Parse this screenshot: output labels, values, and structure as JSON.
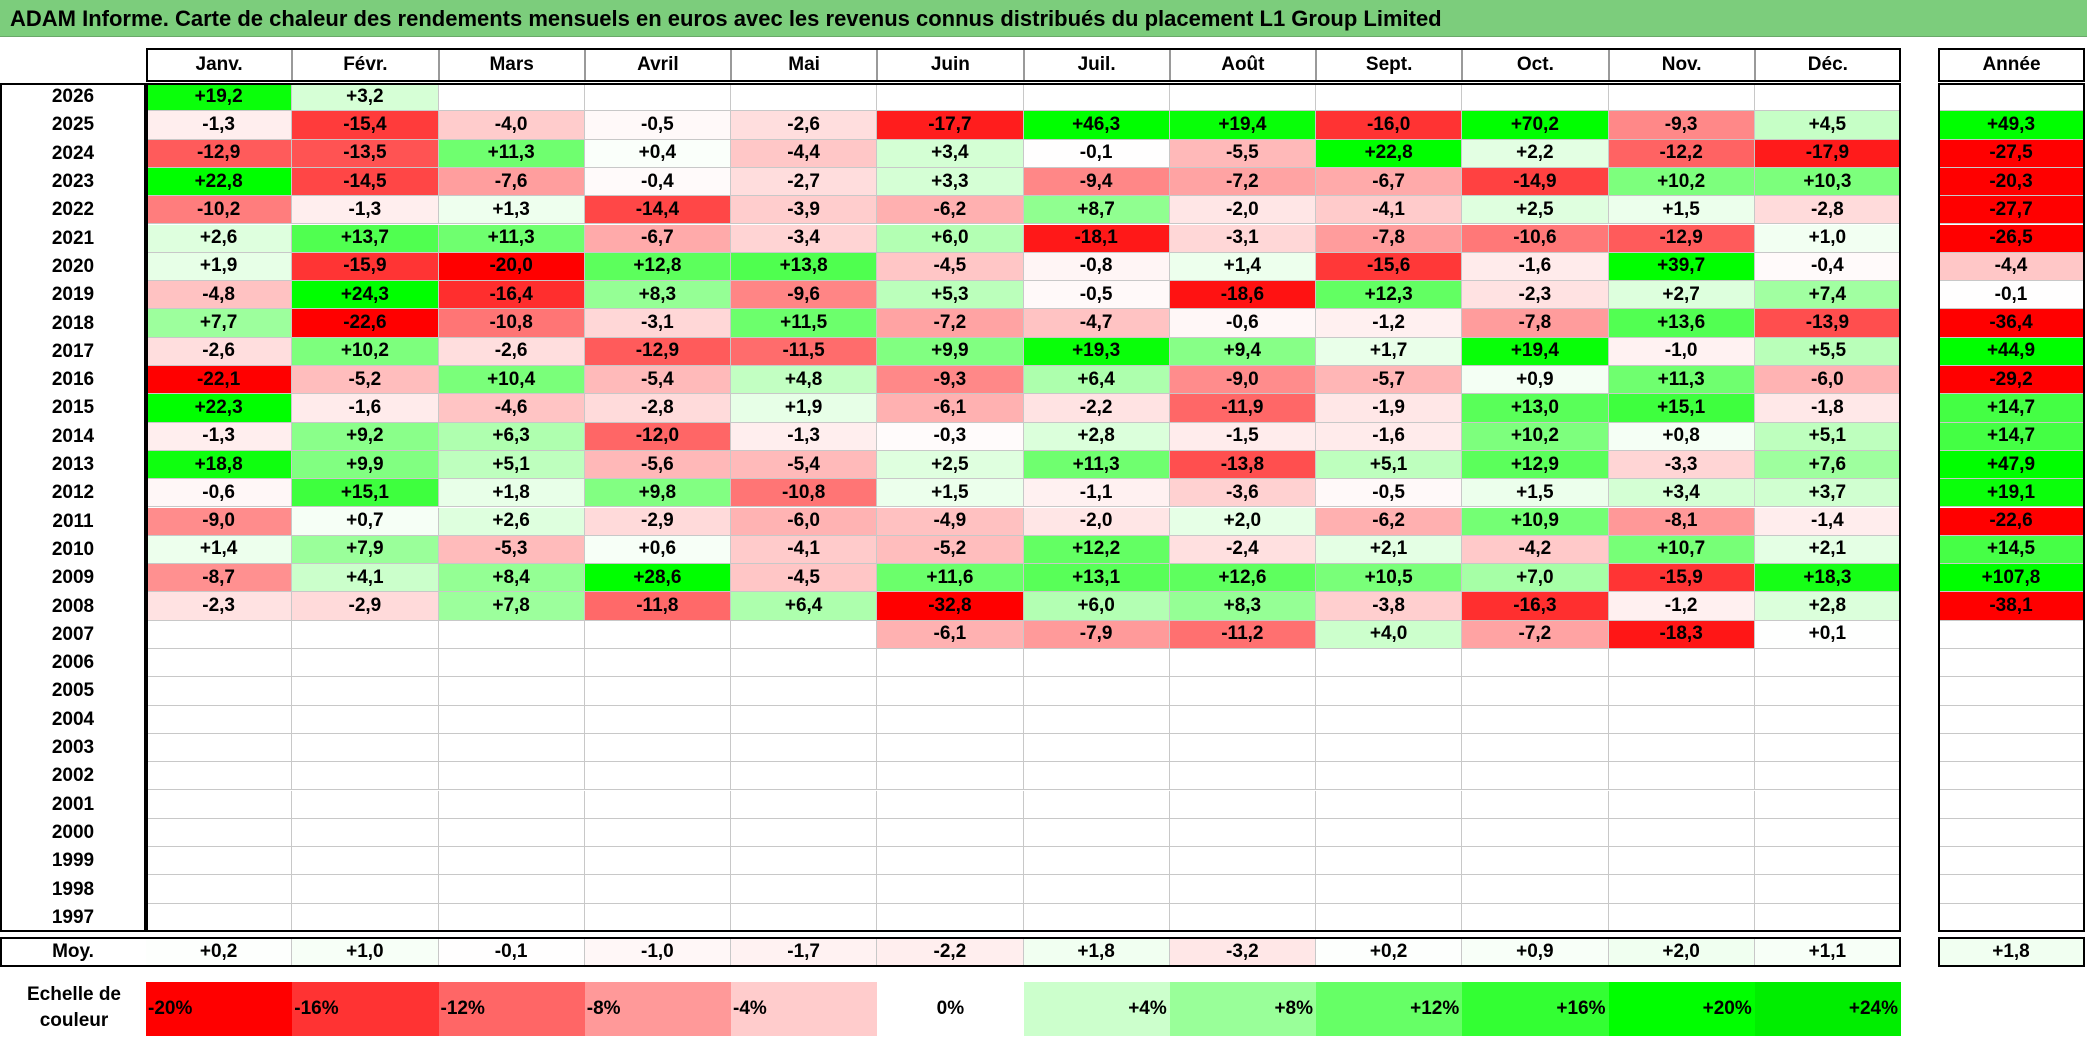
{
  "title": "ADAM Informe. Carte de chaleur des rendements mensuels en euros avec les revenus connus distribués du placement L1 Group Limited",
  "chart_data": {
    "type": "heatmap",
    "title": "ADAM Informe. Carte de chaleur des rendements mensuels en euros avec les revenus connus distribués du placement L1 Group Limited",
    "columns": [
      "Janv.",
      "Févr.",
      "Mars",
      "Avril",
      "Mai",
      "Juin",
      "Juil.",
      "Août",
      "Sept.",
      "Oct.",
      "Nov.",
      "Déc."
    ],
    "year_column_label": "Année",
    "rows": [
      {
        "year": "2026",
        "values": [
          "+19,2",
          "+3,2",
          "",
          "",
          "",
          "",
          "",
          "",
          "",
          "",
          "",
          ""
        ],
        "annual": ""
      },
      {
        "year": "2025",
        "values": [
          "-1,3",
          "-15,4",
          "-4,0",
          "-0,5",
          "-2,6",
          "-17,7",
          "+46,3",
          "+19,4",
          "-16,0",
          "+70,2",
          "-9,3",
          "+4,5"
        ],
        "annual": "+49,3"
      },
      {
        "year": "2024",
        "values": [
          "-12,9",
          "-13,5",
          "+11,3",
          "+0,4",
          "-4,4",
          "+3,4",
          "-0,1",
          "-5,5",
          "+22,8",
          "+2,2",
          "-12,2",
          "-17,9"
        ],
        "annual": "-27,5"
      },
      {
        "year": "2023",
        "values": [
          "+22,8",
          "-14,5",
          "-7,6",
          "-0,4",
          "-2,7",
          "+3,3",
          "-9,4",
          "-7,2",
          "-6,7",
          "-14,9",
          "+10,2",
          "+10,3"
        ],
        "annual": "-20,3"
      },
      {
        "year": "2022",
        "values": [
          "-10,2",
          "-1,3",
          "+1,3",
          "-14,4",
          "-3,9",
          "-6,2",
          "+8,7",
          "-2,0",
          "-4,1",
          "+2,5",
          "+1,5",
          "-2,8"
        ],
        "annual": "-27,7"
      },
      {
        "year": "2021",
        "values": [
          "+2,6",
          "+13,7",
          "+11,3",
          "-6,7",
          "-3,4",
          "+6,0",
          "-18,1",
          "-3,1",
          "-7,8",
          "-10,6",
          "-12,9",
          "+1,0"
        ],
        "annual": "-26,5"
      },
      {
        "year": "2020",
        "values": [
          "+1,9",
          "-15,9",
          "-20,0",
          "+12,8",
          "+13,8",
          "-4,5",
          "-0,8",
          "+1,4",
          "-15,6",
          "-1,6",
          "+39,7",
          "-0,4"
        ],
        "annual": "-4,4"
      },
      {
        "year": "2019",
        "values": [
          "-4,8",
          "+24,3",
          "-16,4",
          "+8,3",
          "-9,6",
          "+5,3",
          "-0,5",
          "-18,6",
          "+12,3",
          "-2,3",
          "+2,7",
          "+7,4"
        ],
        "annual": "-0,1"
      },
      {
        "year": "2018",
        "values": [
          "+7,7",
          "-22,6",
          "-10,8",
          "-3,1",
          "+11,5",
          "-7,2",
          "-4,7",
          "-0,6",
          "-1,2",
          "-7,8",
          "+13,6",
          "-13,9"
        ],
        "annual": "-36,4"
      },
      {
        "year": "2017",
        "values": [
          "-2,6",
          "+10,2",
          "-2,6",
          "-12,9",
          "-11,5",
          "+9,9",
          "+19,3",
          "+9,4",
          "+1,7",
          "+19,4",
          "-1,0",
          "+5,5"
        ],
        "annual": "+44,9"
      },
      {
        "year": "2016",
        "values": [
          "-22,1",
          "-5,2",
          "+10,4",
          "-5,4",
          "+4,8",
          "-9,3",
          "+6,4",
          "-9,0",
          "-5,7",
          "+0,9",
          "+11,3",
          "-6,0"
        ],
        "annual": "-29,2"
      },
      {
        "year": "2015",
        "values": [
          "+22,3",
          "-1,6",
          "-4,6",
          "-2,8",
          "+1,9",
          "-6,1",
          "-2,2",
          "-11,9",
          "-1,9",
          "+13,0",
          "+15,1",
          "-1,8"
        ],
        "annual": "+14,7"
      },
      {
        "year": "2014",
        "values": [
          "-1,3",
          "+9,2",
          "+6,3",
          "-12,0",
          "-1,3",
          "-0,3",
          "+2,8",
          "-1,5",
          "-1,6",
          "+10,2",
          "+0,8",
          "+5,1"
        ],
        "annual": "+14,7"
      },
      {
        "year": "2013",
        "values": [
          "+18,8",
          "+9,9",
          "+5,1",
          "-5,6",
          "-5,4",
          "+2,5",
          "+11,3",
          "-13,8",
          "+5,1",
          "+12,9",
          "-3,3",
          "+7,6"
        ],
        "annual": "+47,9"
      },
      {
        "year": "2012",
        "values": [
          "-0,6",
          "+15,1",
          "+1,8",
          "+9,8",
          "-10,8",
          "+1,5",
          "-1,1",
          "-3,6",
          "-0,5",
          "+1,5",
          "+3,4",
          "+3,7"
        ],
        "annual": "+19,1"
      },
      {
        "year": "2011",
        "values": [
          "-9,0",
          "+0,7",
          "+2,6",
          "-2,9",
          "-6,0",
          "-4,9",
          "-2,0",
          "+2,0",
          "-6,2",
          "+10,9",
          "-8,1",
          "-1,4"
        ],
        "annual": "-22,6"
      },
      {
        "year": "2010",
        "values": [
          "+1,4",
          "+7,9",
          "-5,3",
          "+0,6",
          "-4,1",
          "-5,2",
          "+12,2",
          "-2,4",
          "+2,1",
          "-4,2",
          "+10,7",
          "+2,1"
        ],
        "annual": "+14,5"
      },
      {
        "year": "2009",
        "values": [
          "-8,7",
          "+4,1",
          "+8,4",
          "+28,6",
          "-4,5",
          "+11,6",
          "+13,1",
          "+12,6",
          "+10,5",
          "+7,0",
          "-15,9",
          "+18,3"
        ],
        "annual": "+107,8"
      },
      {
        "year": "2008",
        "values": [
          "-2,3",
          "-2,9",
          "+7,8",
          "-11,8",
          "+6,4",
          "-32,8",
          "+6,0",
          "+8,3",
          "-3,8",
          "-16,3",
          "-1,2",
          "+2,8"
        ],
        "annual": "-38,1"
      },
      {
        "year": "2007",
        "values": [
          "",
          "",
          "",
          "",
          "",
          "-6,1",
          "-7,9",
          "-11,2",
          "+4,0",
          "-7,2",
          "-18,3",
          "+0,1"
        ],
        "annual": ""
      },
      {
        "year": "2006",
        "values": [
          "",
          "",
          "",
          "",
          "",
          "",
          "",
          "",
          "",
          "",
          "",
          ""
        ],
        "annual": ""
      },
      {
        "year": "2005",
        "values": [
          "",
          "",
          "",
          "",
          "",
          "",
          "",
          "",
          "",
          "",
          "",
          ""
        ],
        "annual": ""
      },
      {
        "year": "2004",
        "values": [
          "",
          "",
          "",
          "",
          "",
          "",
          "",
          "",
          "",
          "",
          "",
          ""
        ],
        "annual": ""
      },
      {
        "year": "2003",
        "values": [
          "",
          "",
          "",
          "",
          "",
          "",
          "",
          "",
          "",
          "",
          "",
          ""
        ],
        "annual": ""
      },
      {
        "year": "2002",
        "values": [
          "",
          "",
          "",
          "",
          "",
          "",
          "",
          "",
          "",
          "",
          "",
          ""
        ],
        "annual": ""
      },
      {
        "year": "2001",
        "values": [
          "",
          "",
          "",
          "",
          "",
          "",
          "",
          "",
          "",
          "",
          "",
          ""
        ],
        "annual": ""
      },
      {
        "year": "2000",
        "values": [
          "",
          "",
          "",
          "",
          "",
          "",
          "",
          "",
          "",
          "",
          "",
          ""
        ],
        "annual": ""
      },
      {
        "year": "1999",
        "values": [
          "",
          "",
          "",
          "",
          "",
          "",
          "",
          "",
          "",
          "",
          "",
          ""
        ],
        "annual": ""
      },
      {
        "year": "1998",
        "values": [
          "",
          "",
          "",
          "",
          "",
          "",
          "",
          "",
          "",
          "",
          "",
          ""
        ],
        "annual": ""
      },
      {
        "year": "1997",
        "values": [
          "",
          "",
          "",
          "",
          "",
          "",
          "",
          "",
          "",
          "",
          "",
          ""
        ],
        "annual": ""
      }
    ],
    "average_row": {
      "label": "Moy.",
      "values": [
        "+0,2",
        "+1,0",
        "-0,1",
        "-1,0",
        "-1,7",
        "-2,2",
        "+1,8",
        "-3,2",
        "+0,2",
        "+0,9",
        "+2,0",
        "+1,1"
      ],
      "annual": "+1,8"
    },
    "color_scale": {
      "label": "Echelle de couleur",
      "stops": [
        {
          "label": "-20%",
          "value": -20,
          "color": "#ff0000"
        },
        {
          "label": "-16%",
          "value": -16,
          "color": "#ff3333"
        },
        {
          "label": "-12%",
          "value": -12,
          "color": "#ff6666"
        },
        {
          "label": "-8%",
          "value": -8,
          "color": "#ff9999"
        },
        {
          "label": "-4%",
          "value": -4,
          "color": "#ffcccc"
        },
        {
          "label": "0%",
          "value": 0,
          "color": "#ffffff"
        },
        {
          "label": "+4%",
          "value": 4,
          "color": "#ccffcc"
        },
        {
          "label": "+8%",
          "value": 8,
          "color": "#99ff99"
        },
        {
          "label": "+12%",
          "value": 12,
          "color": "#66ff66"
        },
        {
          "label": "+16%",
          "value": 16,
          "color": "#33ff33"
        },
        {
          "label": "+20%",
          "value": 20,
          "color": "#00ff00"
        },
        {
          "label": "+24%",
          "value": 24,
          "color": "#00ee00"
        }
      ]
    }
  }
}
